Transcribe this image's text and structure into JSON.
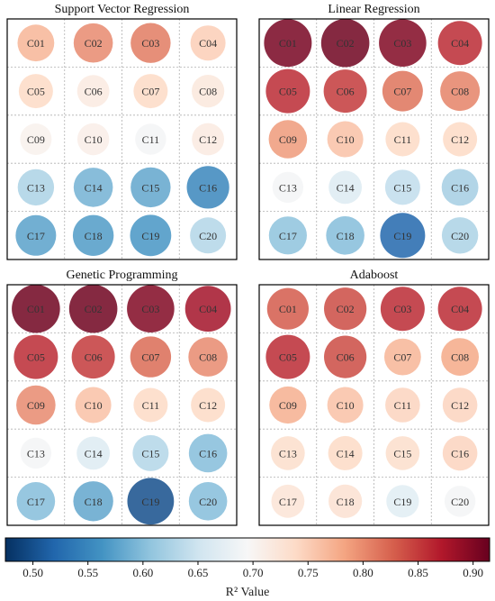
{
  "chart_data": [
    {
      "type": "bubble-grid",
      "title": "Support Vector Regression",
      "rows": 5,
      "cols": 4,
      "cells": [
        {
          "label": "C01",
          "value": 0.77
        },
        {
          "label": "C02",
          "value": 0.8
        },
        {
          "label": "C03",
          "value": 0.81
        },
        {
          "label": "C04",
          "value": 0.75
        },
        {
          "label": "C05",
          "value": 0.74
        },
        {
          "label": "C06",
          "value": 0.715
        },
        {
          "label": "C07",
          "value": 0.74
        },
        {
          "label": "C08",
          "value": 0.72
        },
        {
          "label": "C09",
          "value": 0.705
        },
        {
          "label": "C10",
          "value": 0.71
        },
        {
          "label": "C11",
          "value": 0.69
        },
        {
          "label": "C12",
          "value": 0.715
        },
        {
          "label": "C13",
          "value": 0.625
        },
        {
          "label": "C14",
          "value": 0.59
        },
        {
          "label": "C15",
          "value": 0.58
        },
        {
          "label": "C16",
          "value": 0.55
        },
        {
          "label": "C17",
          "value": 0.575
        },
        {
          "label": "C18",
          "value": 0.57
        },
        {
          "label": "C19",
          "value": 0.565
        },
        {
          "label": "C20",
          "value": 0.63
        }
      ]
    },
    {
      "type": "bubble-grid",
      "title": "Linear Regression",
      "rows": 5,
      "cols": 4,
      "cells": [
        {
          "label": "C01",
          "value": 0.905
        },
        {
          "label": "C02",
          "value": 0.91
        },
        {
          "label": "C03",
          "value": 0.9
        },
        {
          "label": "C04",
          "value": 0.86
        },
        {
          "label": "C05",
          "value": 0.86
        },
        {
          "label": "C06",
          "value": 0.85
        },
        {
          "label": "C07",
          "value": 0.815
        },
        {
          "label": "C08",
          "value": 0.805
        },
        {
          "label": "C09",
          "value": 0.79
        },
        {
          "label": "C10",
          "value": 0.76
        },
        {
          "label": "C11",
          "value": 0.74
        },
        {
          "label": "C12",
          "value": 0.74
        },
        {
          "label": "C13",
          "value": 0.69
        },
        {
          "label": "C14",
          "value": 0.665
        },
        {
          "label": "C15",
          "value": 0.64
        },
        {
          "label": "C16",
          "value": 0.62
        },
        {
          "label": "C17",
          "value": 0.605
        },
        {
          "label": "C18",
          "value": 0.6
        },
        {
          "label": "C19",
          "value": 0.52
        },
        {
          "label": "C20",
          "value": 0.625
        }
      ]
    },
    {
      "type": "bubble-grid",
      "title": "Genetic Programming",
      "rows": 5,
      "cols": 4,
      "cells": [
        {
          "label": "C01",
          "value": 0.91
        },
        {
          "label": "C02",
          "value": 0.91
        },
        {
          "label": "C03",
          "value": 0.9
        },
        {
          "label": "C04",
          "value": 0.88
        },
        {
          "label": "C05",
          "value": 0.86
        },
        {
          "label": "C06",
          "value": 0.85
        },
        {
          "label": "C07",
          "value": 0.82
        },
        {
          "label": "C08",
          "value": 0.8
        },
        {
          "label": "C09",
          "value": 0.8
        },
        {
          "label": "C10",
          "value": 0.76
        },
        {
          "label": "C11",
          "value": 0.74
        },
        {
          "label": "C12",
          "value": 0.74
        },
        {
          "label": "C13",
          "value": 0.69
        },
        {
          "label": "C14",
          "value": 0.665
        },
        {
          "label": "C15",
          "value": 0.63
        },
        {
          "label": "C16",
          "value": 0.6
        },
        {
          "label": "C17",
          "value": 0.6
        },
        {
          "label": "C18",
          "value": 0.58
        },
        {
          "label": "C19",
          "value": 0.5
        },
        {
          "label": "C20",
          "value": 0.6
        }
      ]
    },
    {
      "type": "bubble-grid",
      "title": "Adaboost",
      "rows": 5,
      "cols": 4,
      "cells": [
        {
          "label": "C01",
          "value": 0.83
        },
        {
          "label": "C02",
          "value": 0.84
        },
        {
          "label": "C03",
          "value": 0.86
        },
        {
          "label": "C04",
          "value": 0.86
        },
        {
          "label": "C05",
          "value": 0.86
        },
        {
          "label": "C06",
          "value": 0.84
        },
        {
          "label": "C07",
          "value": 0.77
        },
        {
          "label": "C08",
          "value": 0.78
        },
        {
          "label": "C09",
          "value": 0.775
        },
        {
          "label": "C10",
          "value": 0.76
        },
        {
          "label": "C11",
          "value": 0.745
        },
        {
          "label": "C12",
          "value": 0.745
        },
        {
          "label": "C13",
          "value": 0.735
        },
        {
          "label": "C14",
          "value": 0.74
        },
        {
          "label": "C15",
          "value": 0.735
        },
        {
          "label": "C16",
          "value": 0.745
        },
        {
          "label": "C17",
          "value": 0.725
        },
        {
          "label": "C18",
          "value": 0.73
        },
        {
          "label": "C19",
          "value": 0.67
        },
        {
          "label": "C20",
          "value": 0.69
        }
      ]
    }
  ],
  "colorbar": {
    "label": "R² Value",
    "range": [
      0.475,
      0.915
    ],
    "ticks": [
      0.5,
      0.55,
      0.6,
      0.65,
      0.7,
      0.75,
      0.8,
      0.85,
      0.9
    ],
    "tick_labels": [
      "0.50",
      "0.55",
      "0.60",
      "0.65",
      "0.70",
      "0.75",
      "0.80",
      "0.85",
      "0.90"
    ],
    "colormap": "RdBu_r",
    "colors": [
      "#053061",
      "#2166ac",
      "#4393c3",
      "#92c5de",
      "#d1e5f0",
      "#f7f7f7",
      "#fddbc7",
      "#f4a582",
      "#d6604d",
      "#b2182b",
      "#67001f"
    ]
  },
  "style": {
    "cell_text_color": "#333333",
    "grid_color": "#b0b0b0",
    "frame_color": "#000000"
  }
}
